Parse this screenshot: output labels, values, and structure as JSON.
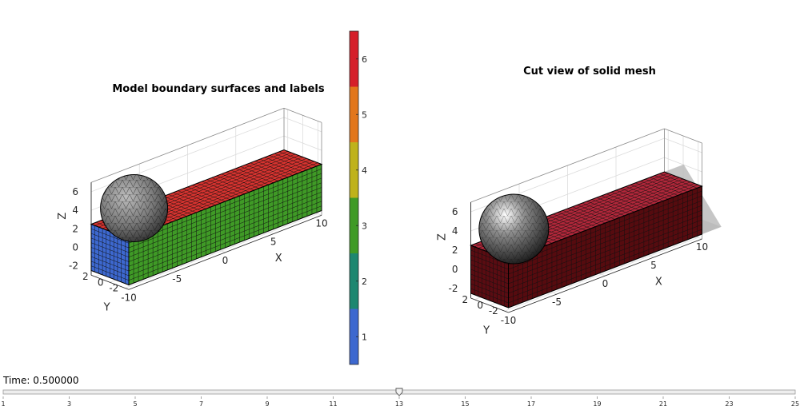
{
  "time_readout": {
    "label": "Time:",
    "value": "0.500000"
  },
  "slider": {
    "min": 1,
    "max": 25,
    "value": 13,
    "ticks": [
      "1",
      "3",
      "5",
      "7",
      "9",
      "11",
      "13",
      "15",
      "17",
      "19",
      "21",
      "23",
      "25"
    ]
  },
  "chart_data": [
    {
      "type": "3d-surface",
      "title": "Model boundary surfaces and labels",
      "xlabel": "X",
      "ylabel": "Y",
      "zlabel": "Z",
      "x_ticks": [
        "-10",
        "-5",
        "0",
        "5",
        "10"
      ],
      "y_ticks": [
        "-2",
        "0",
        "2"
      ],
      "z_ticks": [
        "-2",
        "0",
        "2",
        "4",
        "6"
      ],
      "xlim": [
        -10,
        10
      ],
      "ylim": [
        -2.5,
        2.5
      ],
      "zlim": [
        -3,
        7
      ],
      "grid": true,
      "box": {
        "x": [
          -10,
          10
        ],
        "y": [
          -2.5,
          2.5
        ],
        "z": [
          -2.5,
          2.5
        ]
      },
      "sphere": {
        "center": [
          -7.5,
          0,
          4
        ],
        "radius": 2.5
      },
      "face_colors": {
        "top": "#d7332f",
        "front": "#3f9a26",
        "end": "#3d68cf",
        "far_end": "#3f9a26"
      }
    },
    {
      "type": "3d-surface",
      "title": "Cut view of solid mesh",
      "xlabel": "X",
      "ylabel": "Y",
      "zlabel": "Z",
      "x_ticks": [
        "-10",
        "-5",
        "0",
        "5",
        "10"
      ],
      "y_ticks": [
        "-2",
        "0",
        "2"
      ],
      "z_ticks": [
        "-2",
        "0",
        "2",
        "4",
        "6"
      ],
      "xlim": [
        -10,
        10
      ],
      "ylim": [
        -2.5,
        2.5
      ],
      "zlim": [
        -3,
        7
      ],
      "grid": true,
      "box": {
        "x": [
          -10,
          10
        ],
        "y": [
          -2.5,
          2.5
        ],
        "z": [
          -2.5,
          2.5
        ]
      },
      "sphere": {
        "center": [
          -7.5,
          0,
          4
        ],
        "radius": 2.5
      },
      "face_colors": {
        "top": "#b2273a",
        "front": "#560b0f",
        "end": "#5a0c12",
        "cut": "#c4c4c4"
      }
    },
    {
      "type": "colorbar",
      "ticks": [
        "1",
        "2",
        "3",
        "4",
        "5",
        "6"
      ],
      "colors": [
        "#3d68cf",
        "#1d8770",
        "#3f9a26",
        "#bfb21b",
        "#e2761b",
        "#d51f2a"
      ]
    }
  ]
}
